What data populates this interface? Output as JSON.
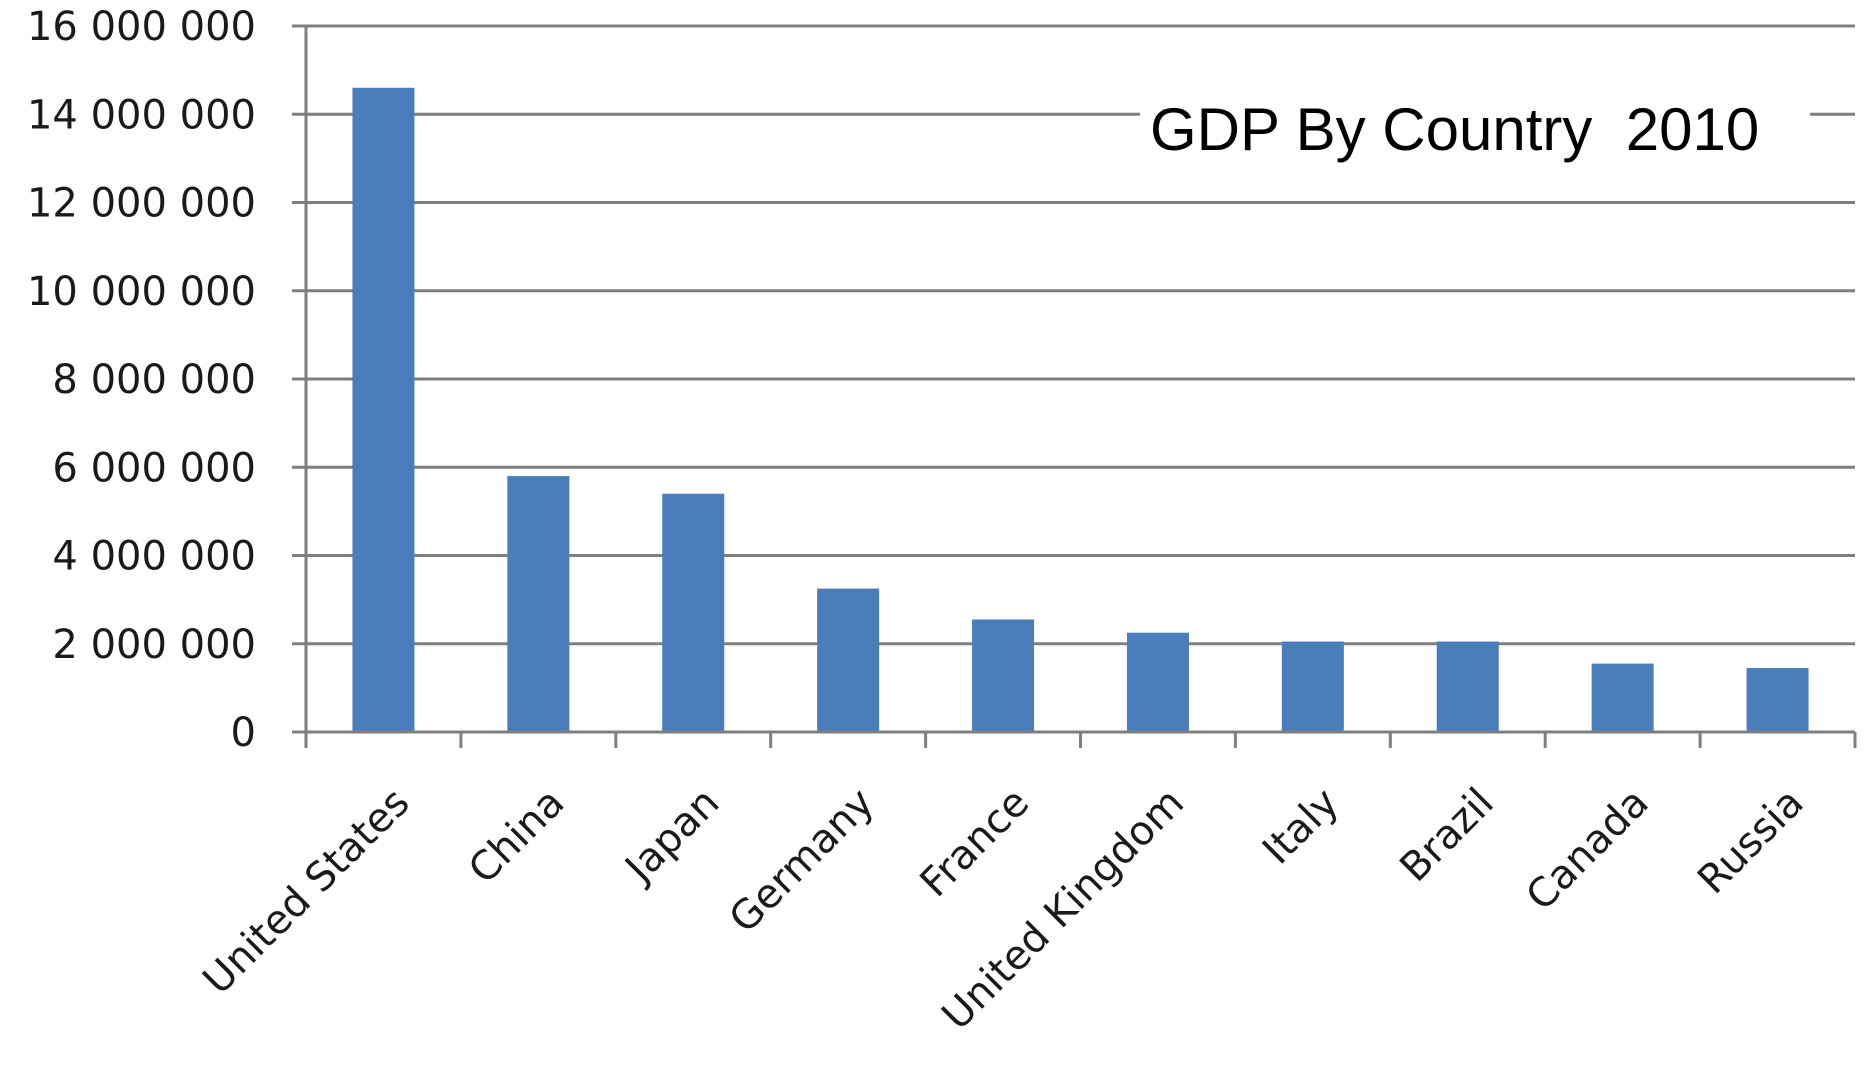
{
  "chart_data": {
    "type": "bar",
    "title": "GDP By Country  2010",
    "xlabel": "",
    "ylabel": "",
    "categories": [
      "United States",
      "China",
      "Japan",
      "Germany",
      "France",
      "United Kingdom",
      "Italy",
      "Brazil",
      "Canada",
      "Russia"
    ],
    "values": [
      14600000,
      5800000,
      5400000,
      3250000,
      2550000,
      2250000,
      2050000,
      2050000,
      1550000,
      1450000
    ],
    "ylim": [
      0,
      16000000
    ],
    "yticks": [
      0,
      2000000,
      4000000,
      6000000,
      8000000,
      10000000,
      12000000,
      14000000,
      16000000
    ],
    "ytick_labels": [
      "0",
      "2 000 000",
      "4 000 000",
      "6 000 000",
      "8 000 000",
      "10 000 000",
      "12 000 000",
      "14 000 000",
      "16 000 000"
    ],
    "grid": true,
    "legend": "none",
    "bar_color": "#4a7ebb",
    "grid_color": "#7f7f7f"
  }
}
